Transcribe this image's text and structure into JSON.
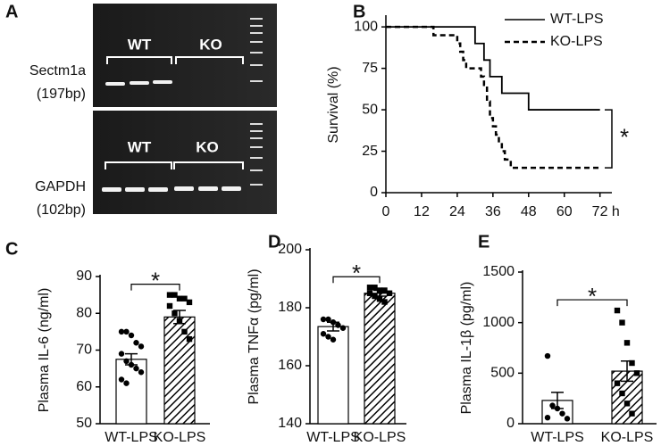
{
  "gel": {
    "label": "A",
    "rows": [
      {
        "name": "Sectm1a",
        "size": "(197bp)",
        "groups": [
          "WT",
          "KO"
        ]
      },
      {
        "name": "GAPDH",
        "size": "(102bp)",
        "groups": [
          "WT",
          "KO"
        ]
      }
    ]
  },
  "chart_data": [
    {
      "type": "step",
      "label": "B",
      "ylabel": "Survival (%)",
      "annotation": "*",
      "xlim": [
        0,
        76
      ],
      "xticks": [
        0,
        12,
        24,
        36,
        48,
        60,
        {
          "value": 72,
          "label": "72 h"
        }
      ],
      "ylim": [
        0,
        106
      ],
      "yticks": [
        0,
        25,
        50,
        75,
        100
      ],
      "legend": "top-right",
      "series": [
        {
          "name": "WT-LPS",
          "color": "#000000",
          "dash": "solid",
          "x": [
            0,
            30,
            33,
            35,
            39,
            48,
            72
          ],
          "values": [
            100,
            90,
            80,
            70,
            60,
            50,
            50
          ]
        },
        {
          "name": "KO-LPS",
          "color": "#000000",
          "dash": "dashed",
          "x": [
            0,
            16,
            24,
            25,
            26,
            27,
            32,
            33,
            34,
            35,
            36,
            37,
            38,
            39,
            40,
            42,
            72
          ],
          "values": [
            100,
            95,
            90,
            85,
            80,
            75,
            70,
            65,
            55,
            45,
            40,
            35,
            30,
            25,
            20,
            15,
            15
          ]
        }
      ]
    },
    {
      "type": "bar-dots",
      "label": "C",
      "ylabel": "Plasma IL-6 (ng/ml)",
      "annotation": "*",
      "categories": [
        "WT-LPS",
        "KO-LPS"
      ],
      "ylim": [
        50,
        90
      ],
      "yticks": [
        50,
        60,
        70,
        80,
        90
      ],
      "values": [
        67.5,
        79
      ],
      "errors": [
        1.5,
        1.8
      ],
      "fills": [
        "#ffffff",
        "hatch"
      ],
      "points": [
        [
          75,
          75,
          74,
          72,
          71,
          69,
          67,
          66,
          65,
          64,
          62,
          61
        ],
        [
          85,
          85,
          84,
          84,
          83,
          82,
          80,
          78,
          75,
          73
        ]
      ]
    },
    {
      "type": "bar-dots",
      "label": "D",
      "ylabel": "Plasma TNFα (pg/ml)",
      "annotation": "*",
      "categories": [
        "WT-LPS",
        "KO-LPS"
      ],
      "ylim": [
        140,
        200
      ],
      "yticks": [
        140,
        160,
        180,
        200
      ],
      "values": [
        173.5,
        185
      ],
      "errors": [
        1.5,
        1
      ],
      "fills": [
        "#ffffff",
        "hatch"
      ],
      "points": [
        [
          176,
          176,
          175,
          174,
          173,
          171,
          170,
          169
        ],
        [
          187,
          187,
          186,
          186,
          185,
          185,
          184,
          183,
          182
        ]
      ]
    },
    {
      "type": "bar-dots",
      "label": "E",
      "ylabel": "Plasma IL-1β (pg/ml)",
      "annotation": "*",
      "categories": [
        "WT-LPS",
        "KO-LPS"
      ],
      "ylim": [
        0,
        1500
      ],
      "yticks": [
        0,
        500,
        1000,
        1500
      ],
      "values": [
        230,
        520
      ],
      "errors": [
        80,
        100
      ],
      "fills": [
        "#ffffff",
        "hatch"
      ],
      "points": [
        [
          670,
          180,
          150,
          100,
          50,
          60
        ],
        [
          1120,
          1000,
          800,
          600,
          500,
          400,
          300,
          200,
          100
        ]
      ]
    }
  ]
}
